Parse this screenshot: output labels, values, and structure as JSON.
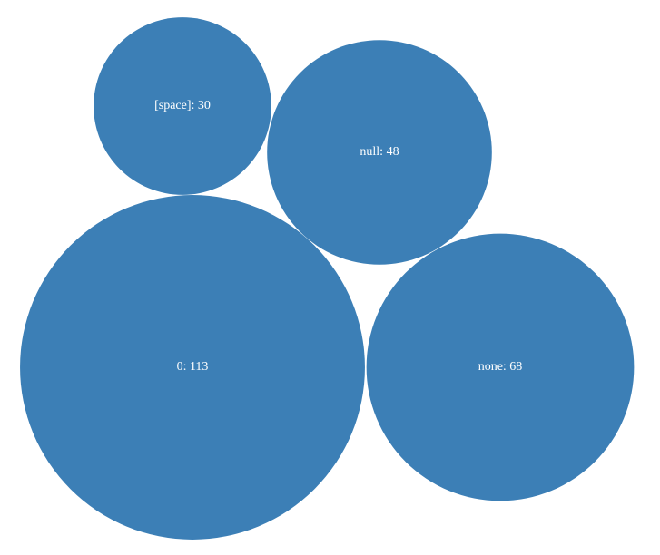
{
  "chart_data": {
    "type": "bubble",
    "values": [
      30,
      48,
      113,
      68
    ],
    "value_labels": [
      "[space]: 30",
      "null: 48",
      "0: 113",
      "none: 68"
    ],
    "color": "#3c7fb6"
  }
}
